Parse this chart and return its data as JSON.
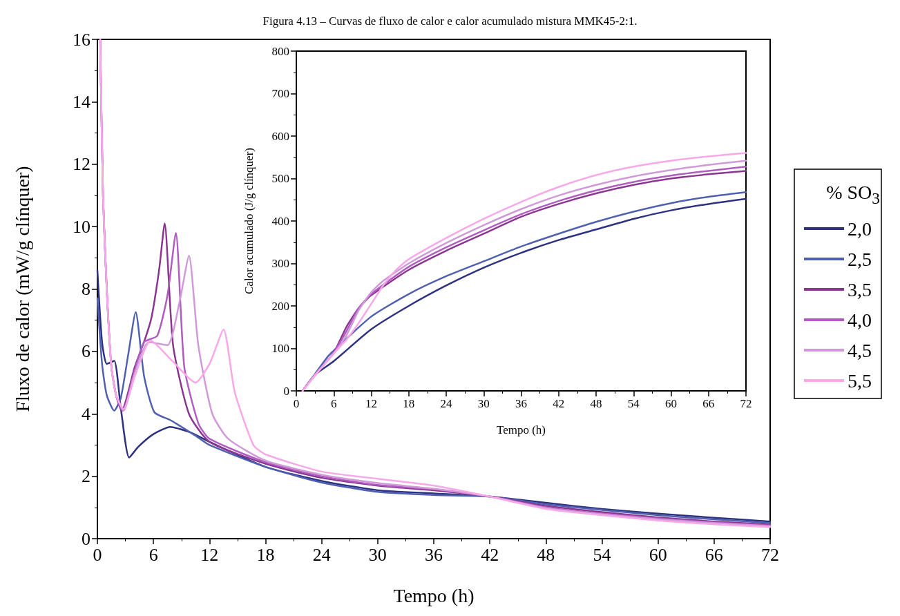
{
  "chart_data": [
    {
      "type": "line",
      "title": "Figura 4.13 – Curvas de fluxo de calor e calor acumulado mistura MMK45-2:1.",
      "xlabel": "Tempo (h)",
      "ylabel": "Fluxo de calor (mW/g clínquer)",
      "legend_title": "% SO$_{3}$",
      "legend": "right",
      "xlim": [
        0,
        72
      ],
      "xticks": [
        0,
        6,
        12,
        18,
        24,
        30,
        36,
        42,
        48,
        54,
        60,
        66,
        72
      ],
      "ylim": [
        0,
        16
      ],
      "yticks": [
        0,
        2,
        4,
        6,
        8,
        10,
        12,
        14,
        16
      ],
      "series": [
        {
          "name": "2,0",
          "color": "#2e3080",
          "x": [
            0,
            0.5,
            1,
            1.8,
            2.5,
            3.4,
            4.4,
            6,
            7.8,
            10,
            12,
            18,
            24,
            30,
            36,
            42,
            48,
            54,
            60,
            66,
            72
          ],
          "values": [
            8.6,
            6.3,
            5.6,
            5.7,
            4.2,
            2.6,
            2.95,
            3.35,
            3.58,
            3.4,
            3.1,
            2.3,
            1.85,
            1.55,
            1.45,
            1.35,
            1.15,
            0.95,
            0.8,
            0.67,
            0.55
          ]
        },
        {
          "name": "2,5",
          "color": "#5060b0",
          "x": [
            0,
            0.5,
            1,
            1.8,
            2.5,
            3.3,
            4.1,
            5,
            6.1,
            7.8,
            10.5,
            12,
            18,
            24,
            30,
            36,
            42,
            48,
            54,
            60,
            66,
            72
          ],
          "values": [
            7.7,
            5.6,
            4.6,
            4.1,
            4.5,
            5.9,
            7.26,
            5.2,
            4.05,
            3.8,
            3.3,
            3.0,
            2.3,
            1.8,
            1.5,
            1.4,
            1.35,
            1.1,
            0.92,
            0.75,
            0.62,
            0.5
          ]
        },
        {
          "name": "3,5",
          "color": "#8a3590",
          "x": [
            0.3,
            0.6,
            1,
            1.5,
            2,
            2.6,
            4,
            5.1,
            5.8,
            6.6,
            7.2,
            8.1,
            9.8,
            12,
            18,
            24,
            30,
            36,
            42,
            48,
            54,
            60,
            66,
            72
          ],
          "values": [
            16,
            11,
            8,
            5.5,
            4.6,
            4.1,
            5.5,
            6.4,
            7.1,
            8.6,
            10.1,
            6.2,
            4.0,
            3.1,
            2.4,
            1.95,
            1.7,
            1.55,
            1.35,
            1.05,
            0.85,
            0.68,
            0.55,
            0.45
          ]
        },
        {
          "name": "4,0",
          "color": "#b05cc0",
          "x": [
            0.3,
            0.6,
            1,
            1.5,
            2,
            2.7,
            4,
            5,
            6.4,
            7.5,
            8.4,
            9.3,
            10.8,
            12,
            18,
            24,
            30,
            36,
            42,
            48,
            54,
            60,
            66,
            72
          ],
          "values": [
            16,
            11,
            8,
            5.5,
            4.6,
            4.1,
            5.4,
            6.3,
            6.5,
            7.8,
            9.8,
            5.5,
            3.7,
            3.2,
            2.45,
            2.0,
            1.72,
            1.58,
            1.35,
            1.0,
            0.8,
            0.65,
            0.52,
            0.42
          ]
        },
        {
          "name": "4,5",
          "color": "#d09ad8",
          "x": [
            0.3,
            0.6,
            1,
            1.5,
            2,
            2.8,
            4,
            5.5,
            7.5,
            8.8,
            9.8,
            10.8,
            12.3,
            14,
            18,
            24,
            30,
            36,
            42,
            48,
            54,
            60,
            66,
            72
          ],
          "values": [
            16,
            11,
            8,
            5.5,
            4.6,
            4.1,
            5.3,
            6.3,
            6.2,
            7.6,
            9.07,
            6.2,
            4.0,
            3.2,
            2.5,
            2.05,
            1.78,
            1.6,
            1.35,
            0.98,
            0.78,
            0.62,
            0.5,
            0.4
          ]
        },
        {
          "name": "5,5",
          "color": "#f8a8e8",
          "x": [
            0.3,
            0.6,
            1,
            1.5,
            2,
            2.8,
            4,
            5.7,
            8,
            10.5,
            12,
            13.5,
            14.7,
            16.7,
            18,
            24,
            30,
            36,
            42,
            48,
            54,
            60,
            66,
            72
          ],
          "values": [
            16,
            11,
            8,
            5.5,
            4.6,
            4.15,
            5.2,
            6.35,
            5.7,
            5.0,
            5.6,
            6.7,
            4.7,
            3.0,
            2.7,
            2.15,
            1.92,
            1.7,
            1.35,
            0.95,
            0.75,
            0.58,
            0.46,
            0.37
          ]
        }
      ]
    },
    {
      "type": "line",
      "xlabel": "Tempo (h)",
      "ylabel": "Calor acumulado (J/g clínquer)",
      "xlim": [
        0,
        72
      ],
      "xticks": [
        0,
        6,
        12,
        18,
        24,
        30,
        36,
        42,
        48,
        54,
        60,
        66,
        72
      ],
      "ylim": [
        0,
        800
      ],
      "yticks": [
        0,
        100,
        200,
        300,
        400,
        500,
        600,
        700,
        800
      ],
      "series": [
        {
          "color": "#2e3080",
          "x": [
            1,
            3,
            6,
            12,
            18,
            24,
            30,
            36,
            42,
            48,
            54,
            60,
            66,
            72
          ],
          "values": [
            0,
            38,
            70,
            145,
            200,
            248,
            290,
            325,
            355,
            380,
            405,
            425,
            440,
            452
          ]
        },
        {
          "color": "#5060b0",
          "x": [
            1,
            3,
            5,
            6,
            12,
            18,
            24,
            30,
            36,
            42,
            48,
            54,
            60,
            66,
            72
          ],
          "values": [
            0,
            40,
            80,
            95,
            175,
            228,
            270,
            305,
            340,
            370,
            398,
            422,
            442,
            457,
            468
          ]
        },
        {
          "color": "#8a3590",
          "x": [
            1,
            3,
            6,
            8,
            10,
            12,
            18,
            24,
            30,
            36,
            42,
            48,
            54,
            60,
            66,
            72
          ],
          "values": [
            0,
            38,
            90,
            150,
            195,
            225,
            285,
            330,
            370,
            410,
            440,
            465,
            485,
            500,
            510,
            518
          ]
        },
        {
          "color": "#b05cc0",
          "x": [
            1,
            3,
            6,
            8,
            10,
            12,
            18,
            24,
            30,
            36,
            42,
            48,
            54,
            60,
            66,
            72
          ],
          "values": [
            0,
            38,
            90,
            140,
            195,
            228,
            292,
            338,
            378,
            416,
            447,
            472,
            492,
            507,
            518,
            528
          ]
        },
        {
          "color": "#d09ad8",
          "x": [
            1,
            3,
            6,
            8,
            10,
            12,
            14,
            18,
            24,
            30,
            36,
            42,
            48,
            54,
            60,
            66,
            72
          ],
          "values": [
            0,
            38,
            88,
            130,
            190,
            232,
            260,
            300,
            348,
            390,
            428,
            460,
            485,
            505,
            520,
            532,
            542
          ]
        },
        {
          "color": "#f8a8e8",
          "x": [
            1,
            3,
            6,
            8,
            10,
            12,
            14,
            16,
            18,
            24,
            30,
            36,
            42,
            48,
            54,
            60,
            66,
            72
          ],
          "values": [
            0,
            36,
            88,
            120,
            160,
            205,
            250,
            285,
            310,
            360,
            405,
            445,
            480,
            508,
            528,
            542,
            552,
            560
          ]
        }
      ]
    }
  ]
}
